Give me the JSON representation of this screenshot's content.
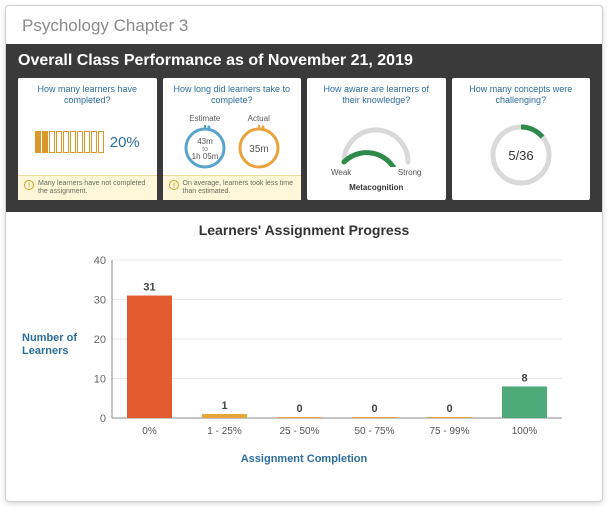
{
  "page_title": "Psychology Chapter 3",
  "strip_title": "Overall Class Performance as of November 21, 2019",
  "cards": {
    "completion": {
      "title": "How many learners have completed?",
      "percent_label": "20%",
      "filled_boxes": 2,
      "total_boxes": 10,
      "box_filled_color": "#d8982a",
      "box_border_color": "#d8982a",
      "warning": "Many learners have not completed the assignment."
    },
    "time": {
      "title": "How long did learners take to complete?",
      "estimate_label": "Estimate",
      "actual_label": "Actual",
      "estimate_line1": "43m",
      "estimate_line2": "to",
      "estimate_line3": "1h 05m",
      "actual_value": "35m",
      "estimate_ring_color": "#5aa3cc",
      "actual_ring_color": "#e8a33d",
      "warning": "On average, learners took less time than estimated."
    },
    "awareness": {
      "title": "How aware are learners of their knowledge?",
      "weak_label": "Weak",
      "strong_label": "Strong",
      "metric_label": "Metacognition",
      "gauge_pct": 0.75,
      "gauge_fg_color": "#2d8a4a",
      "gauge_bg_color": "#d9d9d9",
      "needle_color": "#e8a33d"
    },
    "concepts": {
      "title": "How many concepts were challenging?",
      "value_label": "5/36",
      "fraction": 0.139,
      "ring_fg_color": "#2d8a4a",
      "ring_bg_color": "#d9d9d9"
    }
  },
  "chart": {
    "title": "Learners' Assignment Progress",
    "y_axis_label": "Number of Learners",
    "x_axis_label": "Assignment Completion",
    "type": "bar",
    "ylim": [
      0,
      40
    ],
    "ytick_step": 10,
    "grid_color": "#e8e8e8",
    "axis_color": "#888",
    "categories": [
      "0%",
      "1 - 25%",
      "25 - 50%",
      "50 - 75%",
      "75 - 99%",
      "100%"
    ],
    "values": [
      31,
      1,
      0,
      0,
      0,
      8
    ],
    "bar_colors": [
      "#e25b2f",
      "#e8a33d",
      "#e8a33d",
      "#e8a33d",
      "#e8a33d",
      "#4eaa78"
    ],
    "bar_width_ratio": 0.6,
    "background_color": "#ffffff"
  }
}
